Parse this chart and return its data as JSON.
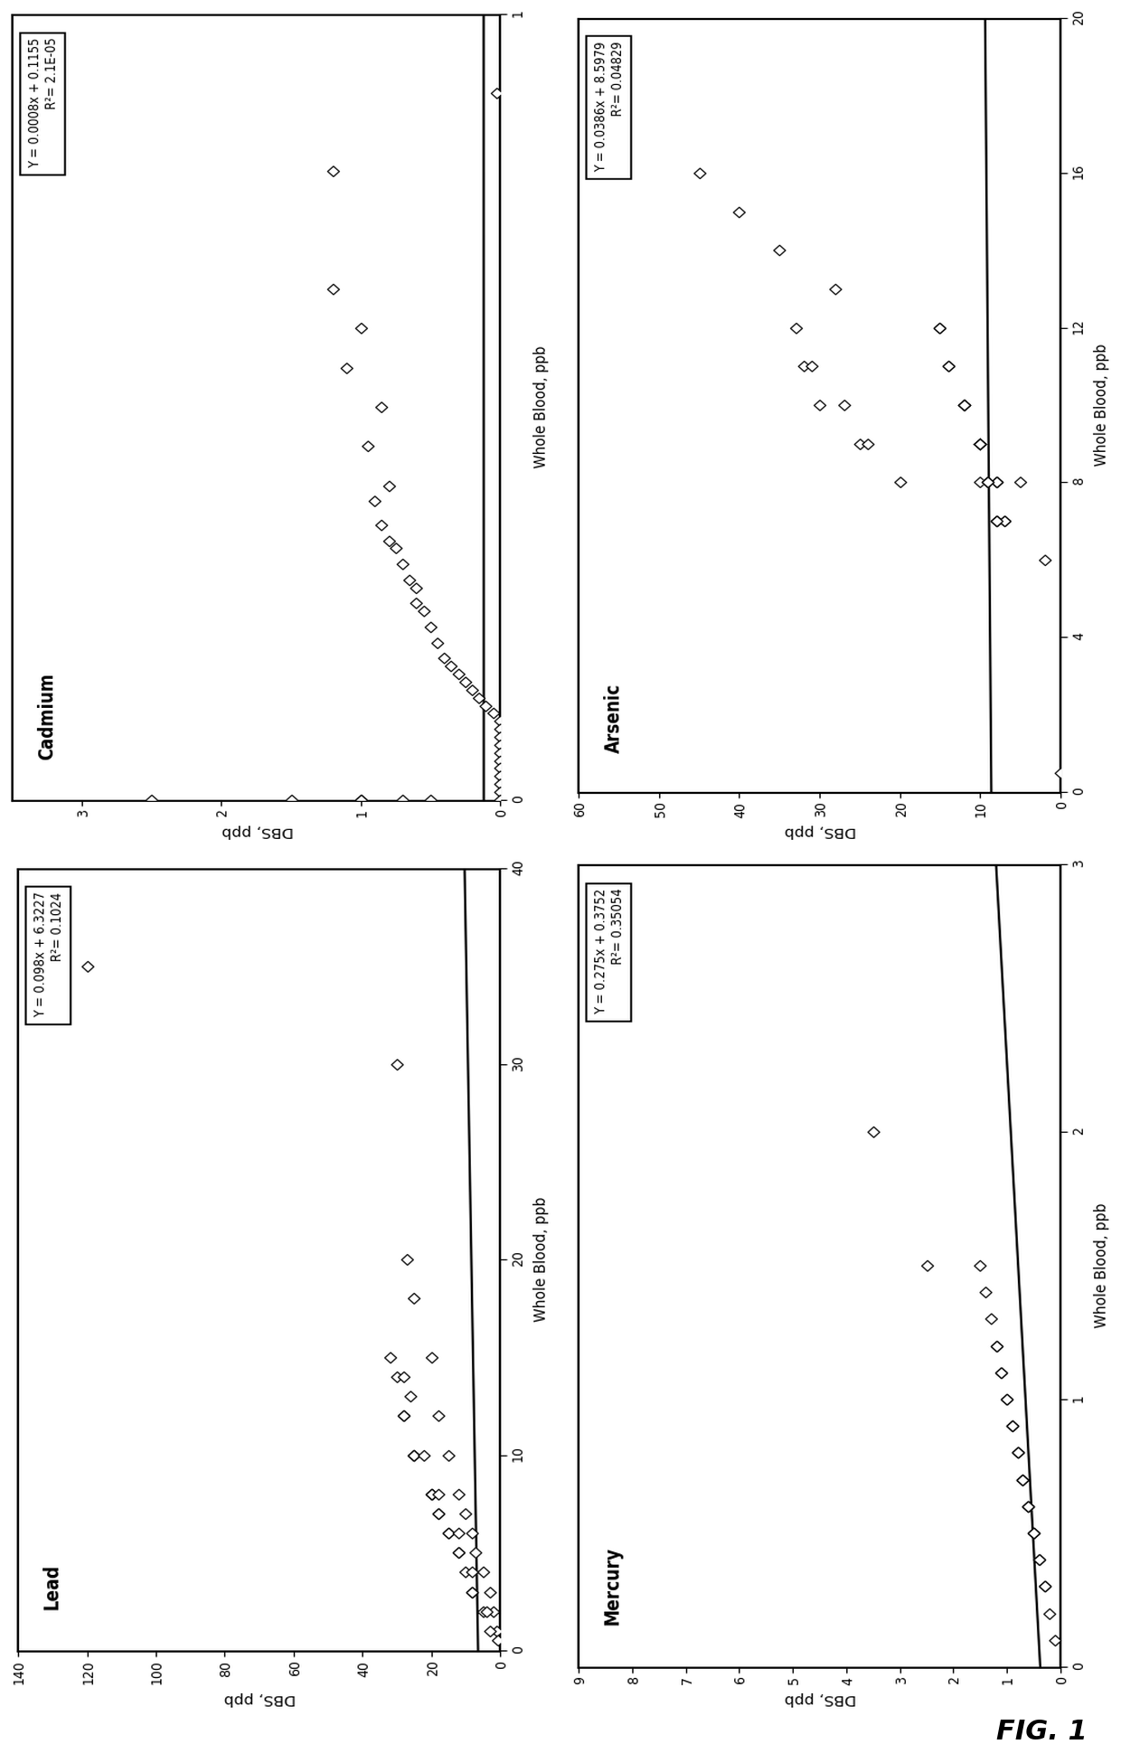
{
  "panels": [
    {
      "title": "Cadmium",
      "equation": "Y = 0.0008x + 0.1155",
      "r2": "R2= 2.1E-05",
      "slope": 0.0008,
      "intercept": 0.1155,
      "wb_lim": [
        0,
        1
      ],
      "dbs_lim": [
        0,
        3.5
      ],
      "wb_ticks": [
        0,
        0,
        0,
        0,
        0,
        1
      ],
      "dbs_ticks": [
        0,
        1,
        2,
        3
      ],
      "xlabel": "Whole Blood, ppb",
      "ylabel": "DBS, ppb",
      "wb_tick_vals": [
        1,
        0
      ],
      "dbs_tick_vals": [
        0,
        1,
        2,
        3
      ],
      "wb_data": [
        0.9,
        0.8,
        0.5,
        0.45,
        0.4,
        0.38,
        0.35,
        0.33,
        0.32,
        0.3,
        0.28,
        0.27,
        0.25,
        0.24,
        0.22,
        0.2,
        0.18,
        0.17,
        0.16,
        0.15,
        0.14,
        0.13,
        0.12,
        0.11,
        0.1,
        0.09,
        0.08,
        0.07,
        0.06,
        0.05,
        0.04,
        0.03,
        0.02,
        0.01,
        0.0,
        0.0,
        0.0,
        0.0,
        0.0,
        0.0,
        0.0,
        0.55,
        0.6,
        0.65
      ],
      "dbs_data": [
        0.02,
        1.2,
        0.85,
        0.95,
        0.8,
        0.9,
        0.85,
        0.8,
        0.75,
        0.7,
        0.65,
        0.6,
        0.6,
        0.55,
        0.5,
        0.45,
        0.4,
        0.35,
        0.3,
        0.25,
        0.2,
        0.15,
        0.1,
        0.05,
        0.0,
        0.0,
        0.0,
        0.0,
        0.0,
        0.0,
        0.0,
        0.0,
        0.0,
        0.0,
        0.0,
        2.5,
        1.0,
        1.0,
        1.5,
        0.5,
        0.7,
        1.1,
        1.0,
        1.2
      ]
    },
    {
      "title": "Arsenic",
      "equation": "Y = 0.0386x + 8.5979",
      "r2": "R2= 0.04829",
      "slope": 0.0386,
      "intercept": 8.5979,
      "wb_lim": [
        0,
        20
      ],
      "dbs_lim": [
        0,
        60
      ],
      "wb_tick_vals": [
        20,
        16,
        12,
        8,
        4,
        0
      ],
      "dbs_tick_vals": [
        0,
        10,
        20,
        30,
        40,
        50,
        60
      ],
      "xlabel": "Whole Blood, ppb",
      "ylabel": "DBS, ppb",
      "wb_data": [
        8,
        6,
        7,
        9,
        10,
        11,
        12,
        9,
        8,
        7,
        8,
        9,
        10,
        8,
        7,
        9,
        8,
        9,
        10,
        9,
        8,
        7,
        10,
        11,
        12,
        9,
        8,
        7,
        8,
        10,
        9,
        0.5,
        13,
        14,
        15,
        16,
        10,
        11,
        9,
        12,
        8,
        10,
        11,
        9
      ],
      "dbs_data": [
        5,
        2,
        8,
        10,
        12,
        14,
        15,
        10,
        8,
        7,
        8,
        10,
        12,
        10,
        8,
        10,
        9,
        10,
        12,
        10,
        8,
        7,
        12,
        14,
        15,
        10,
        9,
        8,
        9,
        12,
        10,
        0,
        28,
        35,
        40,
        45,
        30,
        32,
        25,
        33,
        20,
        27,
        31,
        24
      ]
    },
    {
      "title": "Lead",
      "equation": "Y = 0.098x + 6.3227",
      "r2": "R2= 0.1024",
      "slope": 0.098,
      "intercept": 6.3227,
      "wb_lim": [
        0,
        40
      ],
      "dbs_lim": [
        0,
        140
      ],
      "wb_tick_vals": [
        40,
        30,
        20,
        10,
        0
      ],
      "dbs_tick_vals": [
        0,
        20,
        40,
        60,
        80,
        100,
        120,
        140
      ],
      "xlabel": "Whole Blood, ppb",
      "ylabel": "DBS, ppb",
      "wb_data": [
        35,
        30,
        20,
        18,
        15,
        12,
        10,
        8,
        7,
        6,
        5,
        4,
        3,
        2,
        1,
        0.5,
        10,
        12,
        14,
        8,
        7,
        6,
        5,
        4,
        3,
        15,
        10,
        8,
        7,
        6,
        12,
        10,
        8,
        5,
        3,
        2,
        1,
        14,
        13,
        10,
        8,
        6,
        4,
        2
      ],
      "dbs_data": [
        120,
        30,
        27,
        25,
        20,
        18,
        15,
        12,
        10,
        8,
        7,
        5,
        3,
        2,
        1,
        0.5,
        25,
        28,
        30,
        20,
        18,
        15,
        12,
        10,
        8,
        32,
        25,
        20,
        18,
        15,
        28,
        25,
        20,
        12,
        8,
        5,
        3,
        28,
        26,
        22,
        18,
        12,
        8,
        4
      ]
    },
    {
      "title": "Mercury",
      "equation": "Y = 0.275x + 0.3752",
      "r2": "R2= 0.35054",
      "slope": 0.275,
      "intercept": 0.3752,
      "wb_lim": [
        0,
        3
      ],
      "dbs_lim": [
        0,
        9
      ],
      "wb_tick_vals": [
        3,
        2,
        1,
        0
      ],
      "dbs_tick_vals": [
        0,
        1,
        2,
        3,
        4,
        5,
        6,
        7,
        8,
        9
      ],
      "xlabel": "Whole Blood, ppb",
      "ylabel": "DBS, ppb",
      "wb_data": [
        0.1,
        0.2,
        0.3,
        0.4,
        0.5,
        0.6,
        0.7,
        0.8,
        0.9,
        1.0,
        1.1,
        1.2,
        1.3,
        1.4,
        1.5,
        0.5,
        0.6,
        0.7,
        0.8,
        0.9,
        1.0,
        1.1,
        1.2,
        0.3,
        0.4,
        0.5,
        0.6,
        0.7,
        0.8,
        0.9,
        1.5,
        2.0,
        2.5
      ],
      "dbs_data": [
        0.1,
        0.2,
        0.3,
        0.4,
        0.5,
        0.6,
        0.7,
        0.8,
        0.9,
        1.0,
        1.1,
        1.2,
        1.3,
        1.4,
        1.5,
        0.5,
        0.6,
        0.7,
        0.8,
        0.9,
        1.0,
        1.1,
        1.2,
        0.3,
        0.4,
        0.5,
        0.6,
        0.7,
        0.8,
        0.9,
        2.5,
        3.5,
        8.5
      ]
    }
  ],
  "fig_label": "FIG. 1",
  "background_color": "#ffffff"
}
